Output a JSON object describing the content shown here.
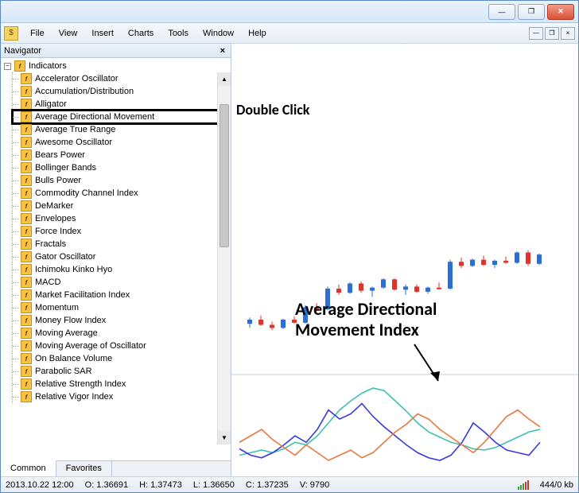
{
  "titlebar": {
    "min": "—",
    "max": "❐",
    "close": "✕"
  },
  "menu": {
    "items": [
      "File",
      "View",
      "Insert",
      "Charts",
      "Tools",
      "Window",
      "Help"
    ]
  },
  "mdi": {
    "min": "—",
    "restore": "❐",
    "close": "×"
  },
  "navigator": {
    "title": "Navigator",
    "root": "Indicators",
    "items": [
      "Accelerator Oscillator",
      "Accumulation/Distribution",
      "Alligator",
      "Average Directional Movement",
      "Average True Range",
      "Awesome Oscillator",
      "Bears Power",
      "Bollinger Bands",
      "Bulls Power",
      "Commodity Channel Index",
      "DeMarker",
      "Envelopes",
      "Force Index",
      "Fractals",
      "Gator Oscillator",
      "Ichimoku Kinko Hyo",
      "MACD",
      "Market Facilitation Index",
      "Momentum",
      "Money Flow Index",
      "Moving Average",
      "Moving Average of Oscillator",
      "On Balance Volume",
      "Parabolic SAR",
      "Relative Strength Index",
      "Relative Vigor Index"
    ],
    "highlighted_index": 3,
    "tabs": {
      "common": "Common",
      "favorites": "Favorites"
    }
  },
  "annotations": {
    "dbl_click": "Double Click",
    "adx_title1": "Average Directional",
    "adx_title2": "Movement Index"
  },
  "statusbar": {
    "datetime": "2013.10.22 12:00",
    "o": "O: 1.36691",
    "h": "H: 1.37473",
    "l": "L: 1.36650",
    "c": "C: 1.37235",
    "v": "V: 9790",
    "kb": "444/0 kb"
  },
  "chart": {
    "candles": {
      "bull_color": "#2a6fd6",
      "bear_color": "#e4322b",
      "wick_color_bull": "#2a6fd6",
      "wick_color_bear": "#e4322b",
      "width": 6,
      "gap": 8,
      "y_base": 360,
      "y_scale": 2600,
      "data": [
        {
          "o": 1.352,
          "h": 1.355,
          "l": 1.35,
          "c": 1.354
        },
        {
          "o": 1.354,
          "h": 1.356,
          "l": 1.351,
          "c": 1.3515
        },
        {
          "o": 1.3515,
          "h": 1.353,
          "l": 1.349,
          "c": 1.35
        },
        {
          "o": 1.35,
          "h": 1.3545,
          "l": 1.3495,
          "c": 1.354
        },
        {
          "o": 1.354,
          "h": 1.3555,
          "l": 1.352,
          "c": 1.3525
        },
        {
          "o": 1.3525,
          "h": 1.361,
          "l": 1.352,
          "c": 1.36
        },
        {
          "o": 1.36,
          "h": 1.362,
          "l": 1.358,
          "c": 1.359
        },
        {
          "o": 1.359,
          "h": 1.37,
          "l": 1.3585,
          "c": 1.369
        },
        {
          "o": 1.369,
          "h": 1.371,
          "l": 1.366,
          "c": 1.367
        },
        {
          "o": 1.367,
          "h": 1.372,
          "l": 1.3665,
          "c": 1.3715
        },
        {
          "o": 1.3715,
          "h": 1.3725,
          "l": 1.367,
          "c": 1.368
        },
        {
          "o": 1.368,
          "h": 1.37,
          "l": 1.365,
          "c": 1.3695
        },
        {
          "o": 1.3695,
          "h": 1.374,
          "l": 1.369,
          "c": 1.3735
        },
        {
          "o": 1.3735,
          "h": 1.374,
          "l": 1.368,
          "c": 1.3685
        },
        {
          "o": 1.3685,
          "h": 1.371,
          "l": 1.366,
          "c": 1.37
        },
        {
          "o": 1.37,
          "h": 1.371,
          "l": 1.367,
          "c": 1.3675
        },
        {
          "o": 1.3675,
          "h": 1.37,
          "l": 1.3665,
          "c": 1.3695
        },
        {
          "o": 1.3695,
          "h": 1.372,
          "l": 1.3685,
          "c": 1.369
        },
        {
          "o": 1.369,
          "h": 1.383,
          "l": 1.3685,
          "c": 1.382
        },
        {
          "o": 1.382,
          "h": 1.384,
          "l": 1.379,
          "c": 1.38
        },
        {
          "o": 1.38,
          "h": 1.3835,
          "l": 1.3795,
          "c": 1.383
        },
        {
          "o": 1.383,
          "h": 1.385,
          "l": 1.38,
          "c": 1.3805
        },
        {
          "o": 1.3805,
          "h": 1.383,
          "l": 1.379,
          "c": 1.3825
        },
        {
          "o": 1.3825,
          "h": 1.3845,
          "l": 1.381,
          "c": 1.3815
        },
        {
          "o": 1.3815,
          "h": 1.387,
          "l": 1.381,
          "c": 1.3865
        },
        {
          "o": 1.3865,
          "h": 1.3875,
          "l": 1.38,
          "c": 1.381
        },
        {
          "o": 1.381,
          "h": 1.386,
          "l": 1.3805,
          "c": 1.3855
        }
      ]
    },
    "adx": {
      "y_top": 420,
      "y_height": 130,
      "colors": {
        "adx": "#40c0b0",
        "plus_di": "#3838e0",
        "minus_di": "#e87840"
      },
      "line_width": 1.6,
      "x_step": 14,
      "series": {
        "adx": [
          20,
          22,
          24,
          22,
          25,
          30,
          28,
          35,
          45,
          55,
          62,
          68,
          72,
          70,
          62,
          54,
          45,
          38,
          34,
          30,
          28,
          25,
          24,
          26,
          30,
          34,
          38,
          40
        ],
        "plus_di": [
          25,
          20,
          18,
          22,
          28,
          35,
          30,
          40,
          55,
          48,
          52,
          60,
          50,
          42,
          35,
          28,
          22,
          18,
          16,
          20,
          30,
          45,
          38,
          30,
          24,
          22,
          20,
          30
        ],
        "minus_di": [
          30,
          35,
          40,
          32,
          26,
          20,
          28,
          22,
          16,
          20,
          24,
          18,
          22,
          30,
          38,
          44,
          52,
          48,
          40,
          34,
          28,
          22,
          30,
          40,
          50,
          55,
          48,
          42
        ]
      }
    }
  }
}
